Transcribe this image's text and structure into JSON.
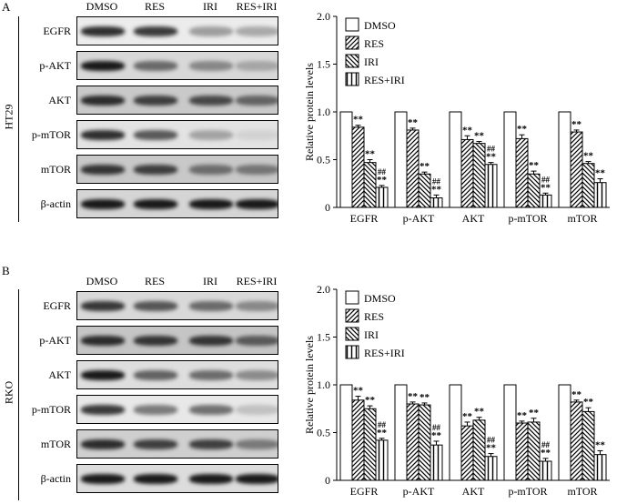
{
  "panels": [
    {
      "letter": "A",
      "cell_line": "HT29",
      "lanes": [
        "DMSO",
        "RES",
        "IRI",
        "RES+IRI"
      ],
      "proteins": [
        "EGFR",
        "p-AKT",
        "AKT",
        "p-mTOR",
        "mTOR",
        "β-actin"
      ],
      "band_intensity": [
        [
          0.85,
          0.8,
          0.35,
          0.3
        ],
        [
          0.95,
          0.55,
          0.4,
          0.25
        ],
        [
          0.85,
          0.75,
          0.7,
          0.55
        ],
        [
          0.85,
          0.65,
          0.3,
          0.08
        ],
        [
          0.8,
          0.75,
          0.5,
          0.45
        ],
        [
          0.95,
          0.95,
          0.95,
          0.95
        ]
      ],
      "background": [
        "#ececec",
        "#d8d8d8",
        "#c9c9c9",
        "#e3e3e3",
        "#c8c8c8",
        "#d5d5d5"
      ]
    },
    {
      "letter": "B",
      "cell_line": "RKO",
      "lanes": [
        "DMSO",
        "RES",
        "IRI",
        "RES+IRI"
      ],
      "proteins": [
        "EGFR",
        "p-AKT",
        "AKT",
        "p-mTOR",
        "mTOR",
        "β-actin"
      ],
      "band_intensity": [
        [
          0.8,
          0.65,
          0.55,
          0.4
        ],
        [
          0.85,
          0.8,
          0.8,
          0.6
        ],
        [
          0.95,
          0.6,
          0.55,
          0.4
        ],
        [
          0.8,
          0.5,
          0.55,
          0.18
        ],
        [
          0.85,
          0.75,
          0.75,
          0.45
        ],
        [
          0.95,
          0.95,
          0.95,
          0.95
        ]
      ],
      "background": [
        "#d9d9d9",
        "#c5c5c5",
        "#dedede",
        "#e8e8e8",
        "#cfcfcf",
        "#dcdcdc"
      ]
    }
  ],
  "chart_data": [
    {
      "type": "bar",
      "ylabel": "Relative protein levels",
      "ylim": [
        0,
        2.0
      ],
      "yticks": [
        "0",
        "0.5",
        "1.0",
        "1.5",
        "2.0"
      ],
      "categories": [
        "EGFR",
        "p-AKT",
        "AKT",
        "p-mTOR",
        "mTOR"
      ],
      "legend_position": "top-left",
      "series": [
        {
          "name": "DMSO",
          "pattern": "none",
          "values": [
            1.0,
            1.0,
            1.0,
            1.0,
            1.0
          ],
          "errors": [
            0,
            0,
            0,
            0,
            0
          ]
        },
        {
          "name": "RES",
          "pattern": "diag-right",
          "values": [
            0.84,
            0.81,
            0.71,
            0.72,
            0.79
          ],
          "errors": [
            0.02,
            0.02,
            0.04,
            0.04,
            0.02
          ]
        },
        {
          "name": "IRI",
          "pattern": "diag-left",
          "values": [
            0.47,
            0.35,
            0.67,
            0.35,
            0.46
          ],
          "errors": [
            0.03,
            0.02,
            0.02,
            0.03,
            0.02
          ]
        },
        {
          "name": "RES+IRI",
          "pattern": "vertical",
          "values": [
            0.21,
            0.1,
            0.45,
            0.13,
            0.26
          ],
          "errors": [
            0.02,
            0.03,
            0.02,
            0.02,
            0.04
          ]
        }
      ],
      "annotations": [
        [
          "",
          "**",
          "**",
          "##\n**"
        ],
        [
          "",
          "**",
          "**",
          "##\n**"
        ],
        [
          "",
          "**",
          "**",
          "##\n**"
        ],
        [
          "",
          "**",
          "**",
          "##\n**"
        ],
        [
          "",
          "**",
          "**",
          "**"
        ]
      ]
    },
    {
      "type": "bar",
      "ylabel": "Relative protein levels",
      "ylim": [
        0,
        2.0
      ],
      "yticks": [
        "0",
        "0.5",
        "1.0",
        "1.5",
        "2.0"
      ],
      "categories": [
        "EGFR",
        "p-AKT",
        "AKT",
        "p-mTOR",
        "mTOR"
      ],
      "legend_position": "top-left",
      "series": [
        {
          "name": "DMSO",
          "pattern": "none",
          "values": [
            1.0,
            1.0,
            1.0,
            1.0,
            1.0
          ],
          "errors": [
            0,
            0,
            0,
            0,
            0
          ]
        },
        {
          "name": "RES",
          "pattern": "diag-right",
          "values": [
            0.84,
            0.8,
            0.57,
            0.6,
            0.82
          ],
          "errors": [
            0.04,
            0.02,
            0.04,
            0.02,
            0.02
          ]
        },
        {
          "name": "IRI",
          "pattern": "diag-left",
          "values": [
            0.75,
            0.79,
            0.63,
            0.61,
            0.72
          ],
          "errors": [
            0.03,
            0.02,
            0.03,
            0.04,
            0.04
          ]
        },
        {
          "name": "RES+IRI",
          "pattern": "vertical",
          "values": [
            0.42,
            0.37,
            0.25,
            0.2,
            0.27
          ],
          "errors": [
            0.02,
            0.04,
            0.03,
            0.03,
            0.04
          ]
        }
      ],
      "annotations": [
        [
          "",
          "**",
          "**",
          "##\n**"
        ],
        [
          "",
          "**",
          "**",
          "##\n**"
        ],
        [
          "",
          "**",
          "**",
          "##\n**"
        ],
        [
          "",
          "**",
          "**",
          "##\n**"
        ],
        [
          "",
          "**",
          "**",
          "**"
        ]
      ]
    }
  ]
}
